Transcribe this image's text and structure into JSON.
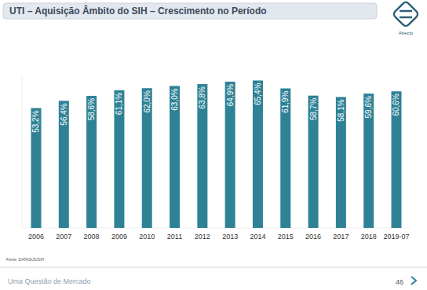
{
  "chart_data": {
    "type": "bar",
    "title": "UTI – Aquisição Âmbito do SIH – Crescimento no Período",
    "categories": [
      "2006",
      "2007",
      "2008",
      "2009",
      "2010",
      "2011",
      "2012",
      "2013",
      "2014",
      "2015",
      "2016",
      "2017",
      "2018",
      "2019-07"
    ],
    "values": [
      53.2,
      56.4,
      58.6,
      61.1,
      62.0,
      63.0,
      63.8,
      64.9,
      65.4,
      61.9,
      58.7,
      58.1,
      59.6,
      60.6
    ],
    "value_labels": [
      "53,2%",
      "56,4%",
      "58,6%",
      "61,1%",
      "62,0%",
      "63,0%",
      "63,8%",
      "64,9%",
      "65,4%",
      "61,9%",
      "58,7%",
      "58,1%",
      "59,6%",
      "60,6%"
    ],
    "color": "#2f8296",
    "ylim": [
      0,
      68
    ],
    "data_labels": true,
    "tick_labels": "x",
    "grid": false,
    "source": "Fonte: DATASUS/SIH",
    "footer": "Uma Questão de Mercado",
    "page": "46",
    "logo": "Abecip"
  }
}
